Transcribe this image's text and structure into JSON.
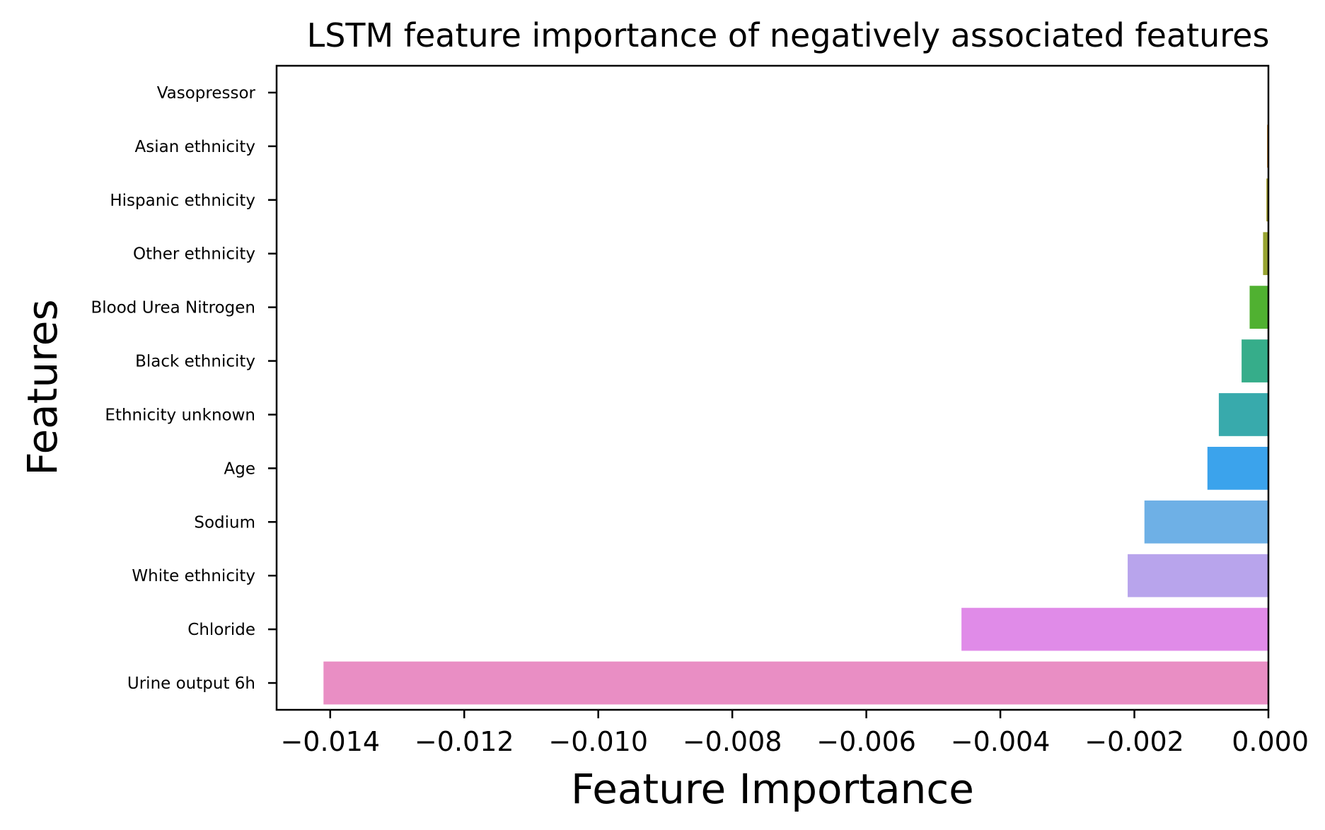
{
  "chart_data": {
    "type": "bar",
    "orientation": "horizontal",
    "title": "LSTM feature importance of negatively associated features",
    "xlabel": "Feature Importance",
    "ylabel": "Features",
    "xlim": [
      -0.0148,
      0.0
    ],
    "xticks": [
      -0.014,
      -0.012,
      -0.01,
      -0.008,
      -0.006,
      -0.004,
      -0.002,
      0.0
    ],
    "xtick_labels": [
      "−0.014",
      "−0.012",
      "−0.010",
      "−0.008",
      "−0.006",
      "−0.004",
      "−0.002",
      "0.000"
    ],
    "grid": false,
    "legend": "none",
    "categories": [
      "Vasopressor",
      "Asian ethnicity",
      "Hispanic ethnicity",
      "Other ethnicity",
      "Blood Urea Nitrogen",
      "Black ethnicity",
      "Ethnicity unknown",
      "Age",
      "Sodium",
      "White ethnicity",
      "Chloride",
      "Urine output 6h"
    ],
    "values": [
      0.0,
      -2e-05,
      -3e-05,
      -8e-05,
      -0.00028,
      -0.0004,
      -0.00074,
      -0.00091,
      -0.00185,
      -0.0021,
      -0.00458,
      -0.0141
    ],
    "colors": [
      "#f77189",
      "#d58c32",
      "#a4a031",
      "#97a431",
      "#50b131",
      "#36ad8a",
      "#38aaac",
      "#3ba3ec",
      "#6eb0e6",
      "#b8a4ec",
      "#e08be8",
      "#e98ec4"
    ]
  }
}
